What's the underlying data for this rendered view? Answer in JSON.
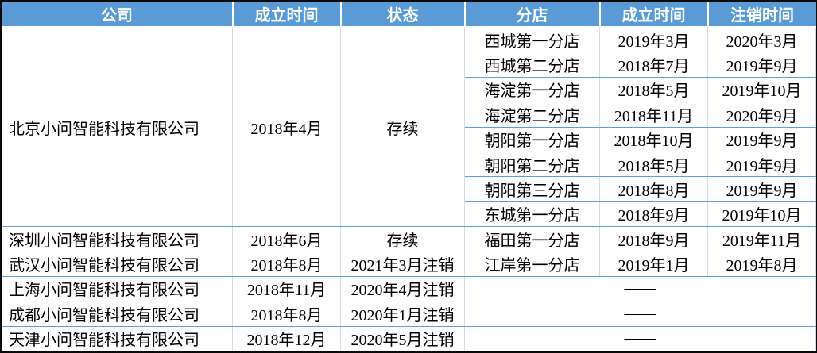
{
  "table": {
    "headers": [
      "公司",
      "成立时间",
      "状态",
      "分店",
      "成立时间",
      "注销时间"
    ],
    "empty_placeholder": "——",
    "companies": [
      {
        "name": "北京小问智能科技有限公司",
        "established": "2018年4月",
        "status": "存续",
        "branches": [
          {
            "name": "西城第一分店",
            "established": "2019年3月",
            "cancelled": "2020年3月"
          },
          {
            "name": "西城第二分店",
            "established": "2018年7月",
            "cancelled": "2019年9月"
          },
          {
            "name": "海淀第一分店",
            "established": "2018年5月",
            "cancelled": "2019年10月"
          },
          {
            "name": "海淀第二分店",
            "established": "2018年11月",
            "cancelled": "2020年9月"
          },
          {
            "name": "朝阳第一分店",
            "established": "2018年10月",
            "cancelled": "2019年9月"
          },
          {
            "name": "朝阳第二分店",
            "established": "2018年5月",
            "cancelled": "2019年9月"
          },
          {
            "name": "朝阳第三分店",
            "established": "2018年8月",
            "cancelled": "2019年9月"
          },
          {
            "name": "东城第一分店",
            "established": "2018年9月",
            "cancelled": "2019年10月"
          }
        ]
      },
      {
        "name": "深圳小问智能科技有限公司",
        "established": "2018年6月",
        "status": "存续",
        "branches": [
          {
            "name": "福田第一分店",
            "established": "2018年9月",
            "cancelled": "2019年11月"
          }
        ]
      },
      {
        "name": "武汉小问智能科技有限公司",
        "established": "2018年8月",
        "status": "2021年3月注销",
        "branches": [
          {
            "name": "江岸第一分店",
            "established": "2019年1月",
            "cancelled": "2019年8月"
          }
        ]
      },
      {
        "name": "上海小问智能科技有限公司",
        "established": "2018年11月",
        "status": "2020年4月注销",
        "branches": []
      },
      {
        "name": "成都小问智能科技有限公司",
        "established": "2018年8月",
        "status": "2020年1月注销",
        "branches": []
      },
      {
        "name": "天津小问智能科技有限公司",
        "established": "2018年12月",
        "status": "2020年5月注销",
        "branches": []
      }
    ],
    "colors": {
      "header_bg": "#5B9BD5",
      "header_text": "#FFFFFF",
      "row_line": "#5E9FD8",
      "column_line": "#CFDDEE",
      "outer_border": "#000000",
      "body_text": "#000000"
    }
  }
}
